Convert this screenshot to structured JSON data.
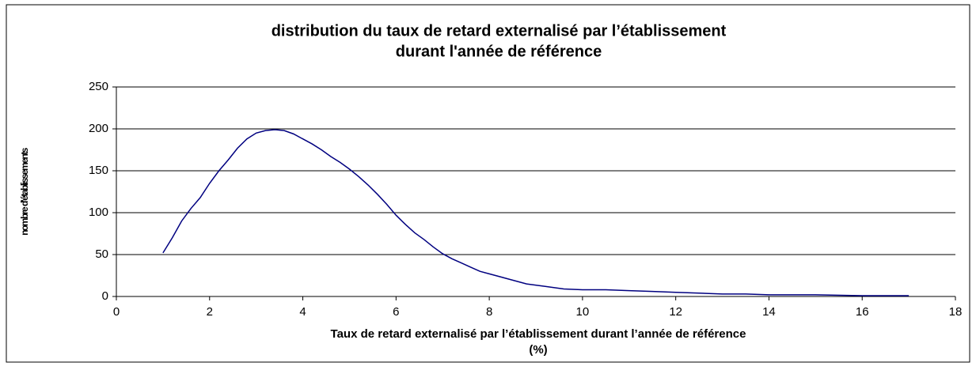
{
  "chart_data": {
    "type": "line",
    "title": [
      "distribution du taux de retard externalisé par l’établissement",
      "durant l'année de référence"
    ],
    "xlabel": [
      "Taux de retard externalisé par l’établissement durant l’année de référence",
      "(%)"
    ],
    "ylabel": "nombre d'établissements",
    "x": [
      1.0,
      1.2,
      1.4,
      1.6,
      1.8,
      2.0,
      2.2,
      2.4,
      2.6,
      2.8,
      3.0,
      3.2,
      3.4,
      3.6,
      3.8,
      4.0,
      4.2,
      4.4,
      4.6,
      4.8,
      5.0,
      5.2,
      5.4,
      5.6,
      5.8,
      6.0,
      6.2,
      6.4,
      6.6,
      6.8,
      7.0,
      7.2,
      7.4,
      7.6,
      7.8,
      8.0,
      8.4,
      8.8,
      9.2,
      9.6,
      10.0,
      10.5,
      11.0,
      11.5,
      12.0,
      12.5,
      13.0,
      13.5,
      14.0,
      15.0,
      16.0,
      17.0
    ],
    "series": [
      {
        "color": "#000080",
        "values": [
          52,
          70,
          90,
          105,
          118,
          135,
          150,
          163,
          177,
          188,
          195,
          198,
          199,
          198,
          194,
          188,
          182,
          175,
          167,
          160,
          152,
          143,
          133,
          122,
          110,
          97,
          86,
          76,
          68,
          59,
          51,
          45,
          40,
          35,
          30,
          27,
          21,
          15,
          12,
          9,
          8,
          8,
          7,
          6,
          5,
          4,
          3,
          3,
          2,
          2,
          1,
          1
        ]
      }
    ],
    "xlim": [
      0,
      18
    ],
    "xticks": [
      0,
      2,
      4,
      6,
      8,
      10,
      12,
      14,
      16,
      18
    ],
    "ylim": [
      0,
      250
    ],
    "yticks": [
      0,
      50,
      100,
      150,
      200,
      250
    ],
    "grid": true
  }
}
